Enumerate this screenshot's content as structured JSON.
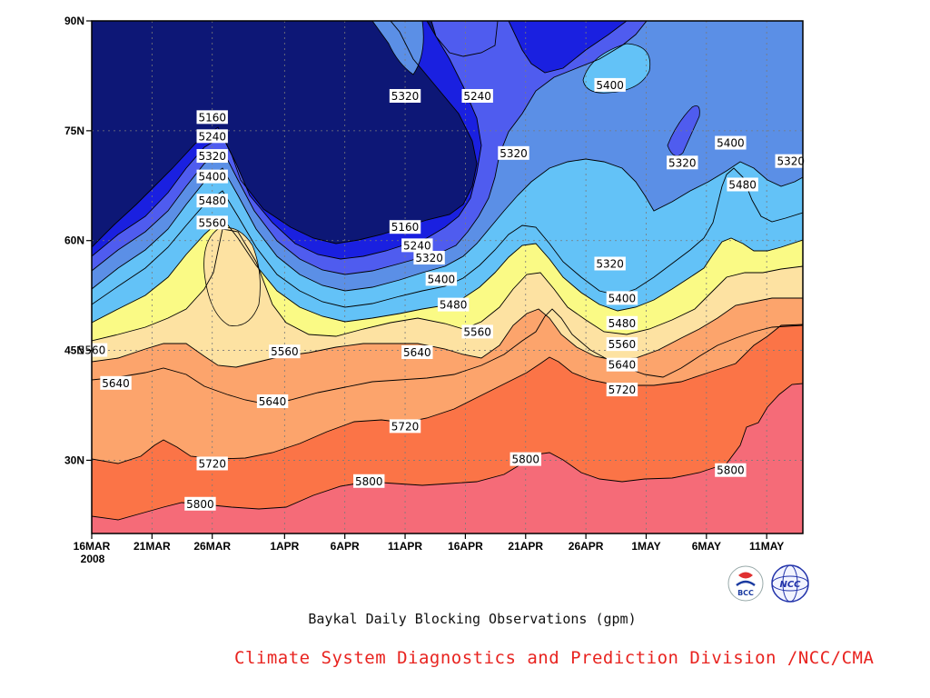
{
  "caption": "Baykal Daily Blocking Observations (gpm)",
  "credit": "Climate System Diagnostics and Prediction Division /NCC/CMA",
  "logos": {
    "left_text": "BCC",
    "right_text": "NCC"
  },
  "colors": {
    "background": "#ffffff",
    "credit": "#e8231f",
    "levels": [
      "#0d1776",
      "#1a20e0",
      "#4f5cef",
      "#5b8fe6",
      "#63c2f7",
      "#fafa85",
      "#fde2a2",
      "#fca46c",
      "#fb7447",
      "#f56b78"
    ]
  },
  "chart_data": {
    "type": "contour",
    "title": "",
    "x_axis": {
      "ticks": [
        "16MAR",
        "21MAR",
        "26MAR",
        "1APR",
        "6APR",
        "11APR",
        "16APR",
        "21APR",
        "26APR",
        "1MAY",
        "6MAY",
        "11MAY"
      ],
      "year_label": "2008",
      "range": [
        "2008-03-16",
        "2008-05-14"
      ]
    },
    "y_axis": {
      "ticks": [
        "30N",
        "45N",
        "60N",
        "75N",
        "90N"
      ],
      "range": [
        20,
        90
      ]
    },
    "grid": true,
    "contour_levels": [
      5160,
      5240,
      5320,
      5400,
      5480,
      5560,
      5640,
      5720,
      5800
    ],
    "fill_bands": [
      "<5160",
      "5160-5240",
      "5240-5320",
      "5320-5400",
      "5400-5480",
      "5480-5560",
      "5560-5640",
      "5640-5720",
      "5720-5800",
      ">5800"
    ],
    "contour_labels": [
      {
        "text": "5160",
        "date": "2008-03-26",
        "lat": 76.8
      },
      {
        "text": "5240",
        "date": "2008-03-26",
        "lat": 74.2
      },
      {
        "text": "5320",
        "date": "2008-03-26",
        "lat": 71.5
      },
      {
        "text": "5400",
        "date": "2008-03-26",
        "lat": 68.7
      },
      {
        "text": "5480",
        "date": "2008-03-26",
        "lat": 65.4
      },
      {
        "text": "5560",
        "date": "2008-03-26",
        "lat": 62.4
      },
      {
        "text": "5560",
        "date": "2008-03-16",
        "lat": 45.0
      },
      {
        "text": "5640",
        "date": "2008-03-18",
        "lat": 40.5
      },
      {
        "text": "5720",
        "date": "2008-03-26",
        "lat": 29.5
      },
      {
        "text": "5800",
        "date": "2008-03-25",
        "lat": 24.0
      },
      {
        "text": "5560",
        "date": "2008-04-01",
        "lat": 44.8
      },
      {
        "text": "5640",
        "date": "2008-03-31",
        "lat": 38.0
      },
      {
        "text": "5320",
        "date": "2008-04-11",
        "lat": 79.7
      },
      {
        "text": "5240",
        "date": "2008-04-17",
        "lat": 79.7
      },
      {
        "text": "5320",
        "date": "2008-04-20",
        "lat": 71.9
      },
      {
        "text": "5160",
        "date": "2008-04-11",
        "lat": 61.8
      },
      {
        "text": "5240",
        "date": "2008-04-12",
        "lat": 59.3
      },
      {
        "text": "5320",
        "date": "2008-04-13",
        "lat": 57.6
      },
      {
        "text": "5400",
        "date": "2008-04-14",
        "lat": 54.7
      },
      {
        "text": "5480",
        "date": "2008-04-15",
        "lat": 51.2
      },
      {
        "text": "5560",
        "date": "2008-04-17",
        "lat": 47.5
      },
      {
        "text": "5640",
        "date": "2008-04-12",
        "lat": 44.7
      },
      {
        "text": "5720",
        "date": "2008-04-11",
        "lat": 34.6
      },
      {
        "text": "5800",
        "date": "2008-04-08",
        "lat": 27.1
      },
      {
        "text": "5800",
        "date": "2008-04-21",
        "lat": 30.1
      },
      {
        "text": "5400",
        "date": "2008-04-28",
        "lat": 81.2
      },
      {
        "text": "5320",
        "date": "2008-04-28",
        "lat": 56.8
      },
      {
        "text": "5400",
        "date": "2008-04-29",
        "lat": 52.1
      },
      {
        "text": "5480",
        "date": "2008-04-29",
        "lat": 48.7
      },
      {
        "text": "5560",
        "date": "2008-04-29",
        "lat": 45.8
      },
      {
        "text": "5640",
        "date": "2008-04-29",
        "lat": 43.0
      },
      {
        "text": "5720",
        "date": "2008-04-29",
        "lat": 39.6
      },
      {
        "text": "5320",
        "date": "2008-05-04",
        "lat": 70.6
      },
      {
        "text": "5400",
        "date": "2008-05-08",
        "lat": 73.3
      },
      {
        "text": "5480",
        "date": "2008-05-09",
        "lat": 67.6
      },
      {
        "text": "5320",
        "date": "2008-05-13",
        "lat": 70.8
      },
      {
        "text": "5800",
        "date": "2008-05-08",
        "lat": 28.6
      }
    ]
  }
}
